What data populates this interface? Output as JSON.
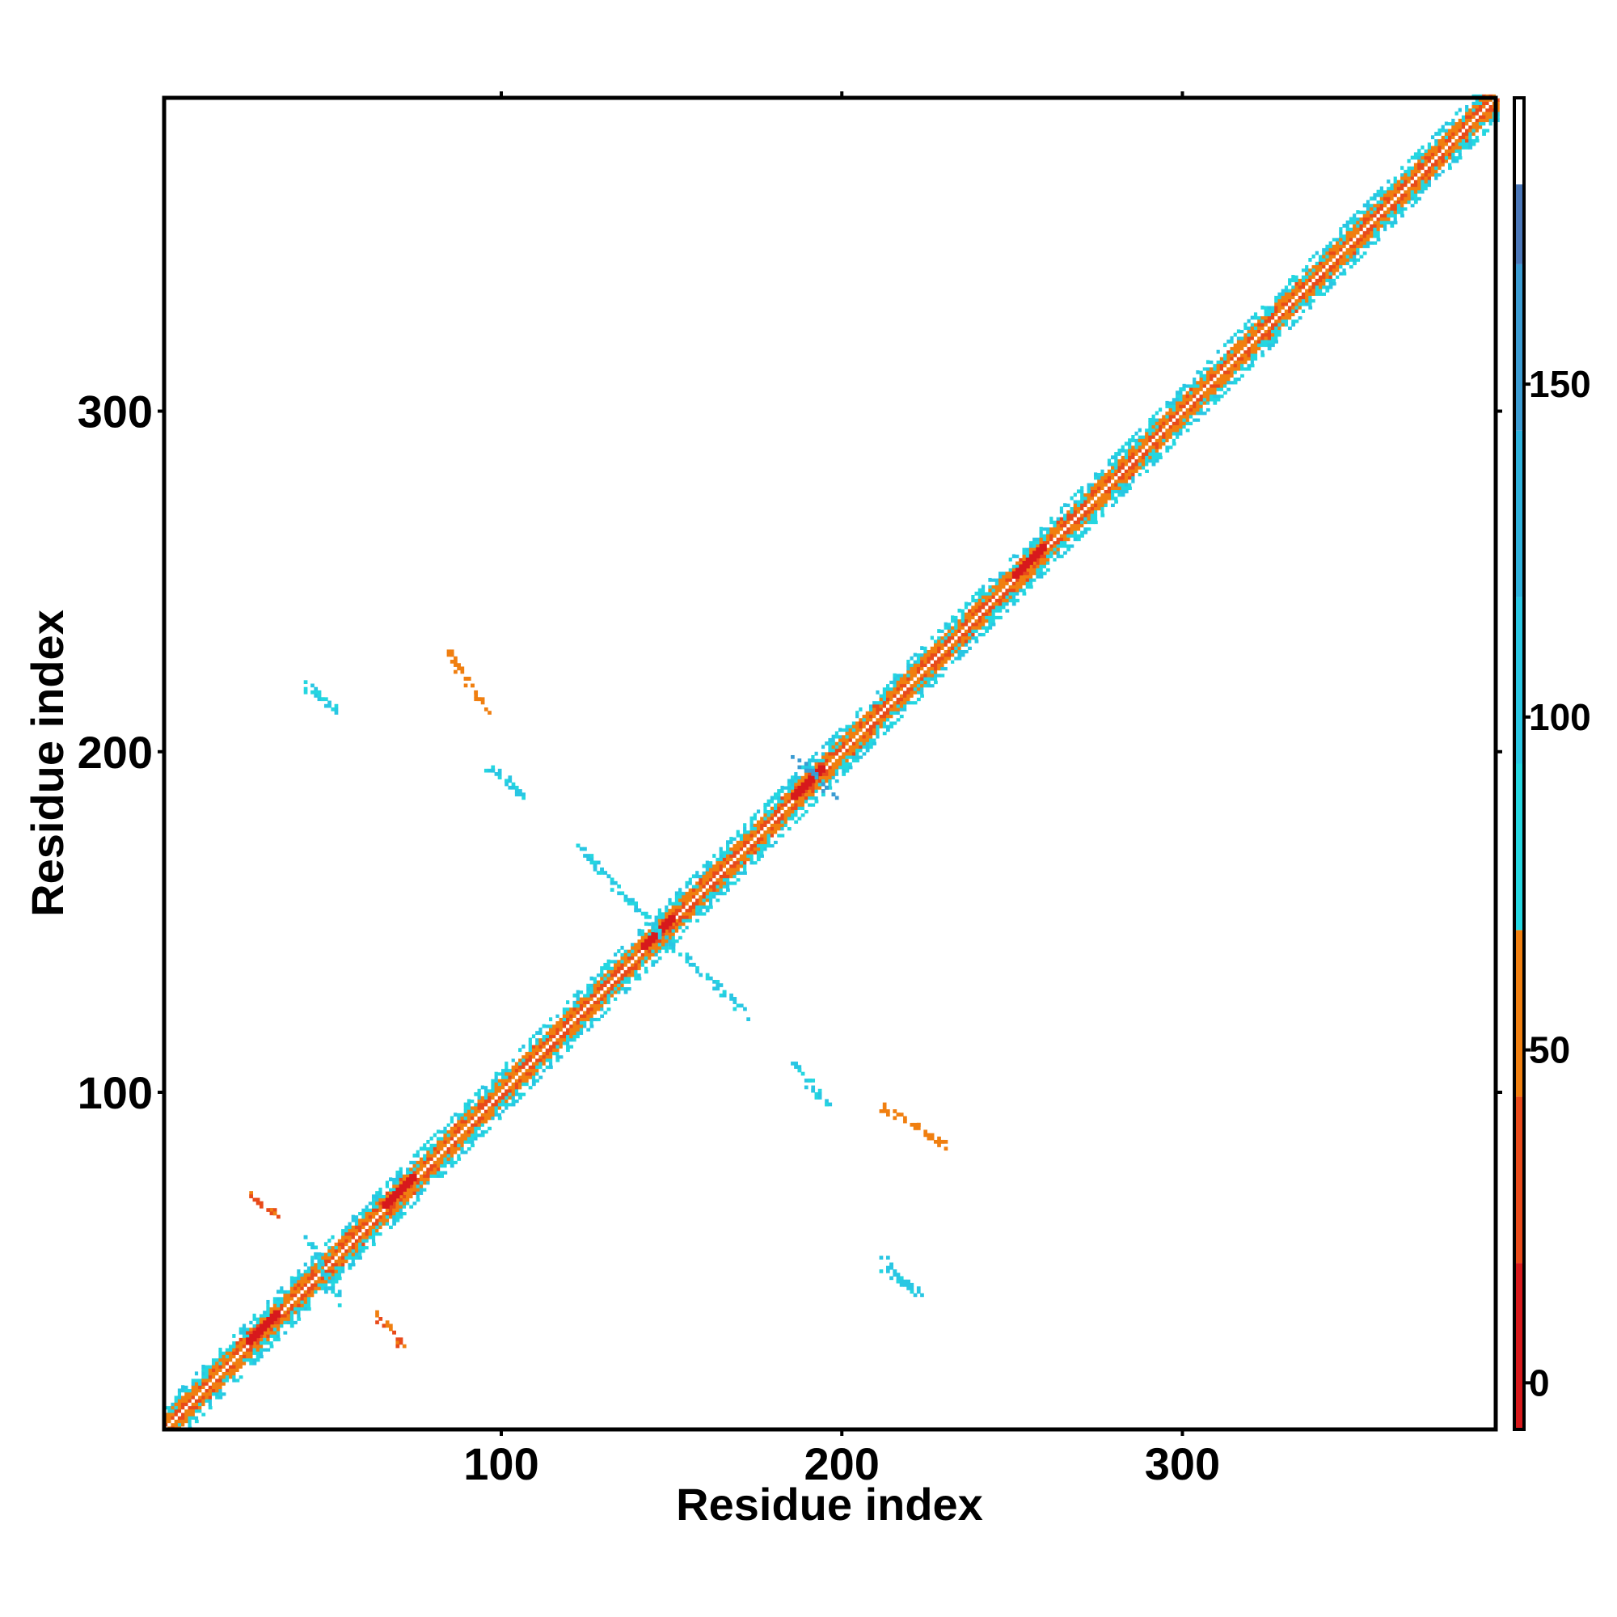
{
  "chart_data": {
    "type": "heatmap",
    "title": "",
    "xlabel": "Residue index",
    "ylabel": "Residue index",
    "xlim": [
      1,
      392
    ],
    "ylim": [
      1,
      392
    ],
    "xticks": [
      100,
      200,
      300
    ],
    "yticks": [
      100,
      200,
      300
    ],
    "colorbar": {
      "ticks": [
        0,
        50,
        100,
        150
      ],
      "range": [
        -7,
        193
      ],
      "bands": [
        {
          "from": -7,
          "to": 18,
          "color": "#d7191c"
        },
        {
          "from": 18,
          "to": 43,
          "color": "#e84a1a"
        },
        {
          "from": 43,
          "to": 68,
          "color": "#f07f10"
        },
        {
          "from": 68,
          "to": 93,
          "color": "#24d6e0"
        },
        {
          "from": 93,
          "to": 118,
          "color": "#29c6e3"
        },
        {
          "from": 118,
          "to": 143,
          "color": "#2eb1dc"
        },
        {
          "from": 143,
          "to": 168,
          "color": "#3a9bd2"
        },
        {
          "from": 168,
          "to": 180,
          "color": "#4a76b8"
        },
        {
          "from": 180,
          "to": 193,
          "color": "#ffffff"
        }
      ]
    },
    "grid": false,
    "diagonal_band": {
      "start": 1,
      "end": 392
    },
    "diagonal_highlights": [
      {
        "x": 190,
        "y": 190,
        "value": 5
      },
      {
        "x": 146,
        "y": 146,
        "value": 5
      },
      {
        "x": 70,
        "y": 70,
        "value": 5
      },
      {
        "x": 255,
        "y": 255,
        "value": 5
      },
      {
        "x": 30,
        "y": 30,
        "value": 5
      }
    ],
    "contact_clusters": [
      {
        "x": [
          84,
          95
        ],
        "y": [
          212,
          229
        ],
        "value": 55,
        "slope": -1
      },
      {
        "x": [
          212,
          230
        ],
        "y": [
          84,
          95
        ],
        "value": 55,
        "slope": -1
      },
      {
        "x": [
          42,
          51
        ],
        "y": [
          212,
          219
        ],
        "value": 95,
        "slope": -1
      },
      {
        "x": [
          212,
          219
        ],
        "y": [
          42,
          51
        ],
        "value": 95,
        "slope": -1
      },
      {
        "x": [
          96,
          108
        ],
        "y": [
          185,
          195
        ],
        "value": 95,
        "slope": -1
      },
      {
        "x": [
          185,
          195
        ],
        "y": [
          96,
          108
        ],
        "value": 95,
        "slope": -1
      },
      {
        "x": [
          122,
          146
        ],
        "y": [
          146,
          172
        ],
        "value": 95,
        "slope": -1
      },
      {
        "x": [
          146,
          172
        ],
        "y": [
          122,
          146
        ],
        "value": 95,
        "slope": -1
      },
      {
        "x": [
          186,
          198
        ],
        "y": [
          186,
          198
        ],
        "value": 150,
        "slope": -1
      },
      {
        "x": [
          26,
          34
        ],
        "y": [
          63,
          70
        ],
        "value": 40,
        "slope": -1
      },
      {
        "x": [
          63,
          70
        ],
        "y": [
          26,
          34
        ],
        "value": 40,
        "slope": -1
      },
      {
        "x": [
          42,
          52
        ],
        "y": [
          38,
          58
        ],
        "value": 95,
        "slope": -1
      },
      {
        "x": [
          212,
          222
        ],
        "y": [
          40,
          48
        ],
        "value": 95,
        "slope": -1
      }
    ]
  }
}
